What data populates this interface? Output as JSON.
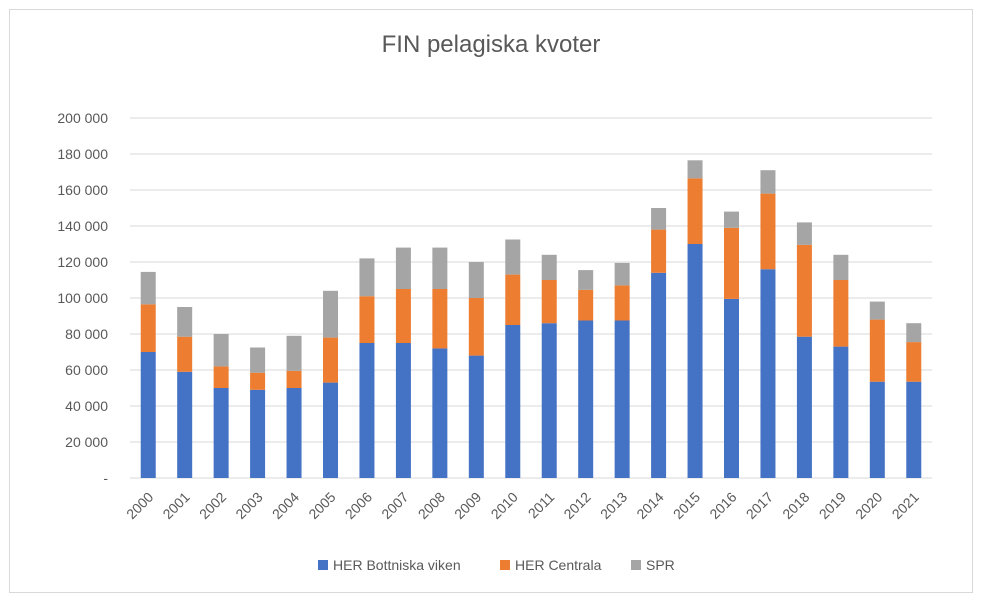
{
  "chart_data": {
    "type": "bar",
    "stacked": true,
    "title": "FIN pelagiska kvoter",
    "xlabel": "",
    "ylabel": "",
    "ylim": [
      0,
      200000
    ],
    "yticks": [
      0,
      20000,
      40000,
      60000,
      80000,
      100000,
      120000,
      140000,
      160000,
      180000,
      200000
    ],
    "ytick_labels": [
      "-",
      "20 000",
      "40 000",
      "60 000",
      "80 000",
      "100 000",
      "120 000",
      "140 000",
      "160 000",
      "180 000",
      "200 000"
    ],
    "grid": true,
    "legend_position": "bottom",
    "categories": [
      "2000",
      "2001",
      "2002",
      "2003",
      "2004",
      "2005",
      "2006",
      "2007",
      "2008",
      "2009",
      "2010",
      "2011",
      "2012",
      "2013",
      "2014",
      "2015",
      "2016",
      "2017",
      "2018",
      "2019",
      "2020",
      "2021"
    ],
    "series": [
      {
        "name": "HER Bottniska viken",
        "color": "#4472c4",
        "values": [
          70000,
          59000,
          50000,
          49000,
          50000,
          53000,
          75000,
          75000,
          72000,
          68000,
          85000,
          86000,
          87500,
          87500,
          114000,
          130000,
          99500,
          116000,
          78500,
          73000,
          53500,
          53500
        ]
      },
      {
        "name": "HER Centrala",
        "color": "#ed7d31",
        "values": [
          26500,
          19500,
          12000,
          9500,
          9500,
          25000,
          26000,
          30000,
          33000,
          32000,
          28000,
          24000,
          17000,
          19500,
          24000,
          36500,
          39500,
          42000,
          51000,
          37000,
          34500,
          22000
        ]
      },
      {
        "name": "SPR",
        "color": "#a5a5a5",
        "values": [
          18000,
          16500,
          18000,
          14000,
          19500,
          26000,
          21000,
          23000,
          23000,
          20000,
          19500,
          14000,
          11000,
          12500,
          12000,
          10000,
          9000,
          13000,
          12500,
          14000,
          10000,
          10500
        ]
      }
    ]
  }
}
